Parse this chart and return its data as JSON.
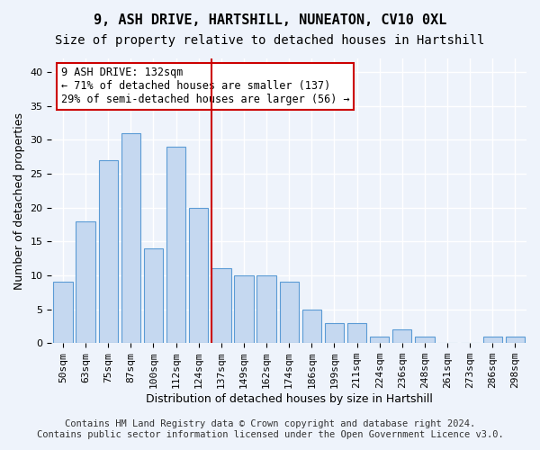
{
  "title1": "9, ASH DRIVE, HARTSHILL, NUNEATON, CV10 0XL",
  "title2": "Size of property relative to detached houses in Hartshill",
  "xlabel": "Distribution of detached houses by size in Hartshill",
  "ylabel": "Number of detached properties",
  "categories": [
    "50sqm",
    "63sqm",
    "75sqm",
    "87sqm",
    "100sqm",
    "112sqm",
    "124sqm",
    "137sqm",
    "149sqm",
    "162sqm",
    "174sqm",
    "186sqm",
    "199sqm",
    "211sqm",
    "224sqm",
    "236sqm",
    "248sqm",
    "261sqm",
    "273sqm",
    "286sqm",
    "298sqm"
  ],
  "values": [
    9,
    18,
    27,
    31,
    14,
    29,
    20,
    11,
    10,
    10,
    9,
    5,
    3,
    3,
    1,
    2,
    1,
    0,
    0,
    1,
    1
  ],
  "bar_color": "#c5d8f0",
  "bar_edge_color": "#5b9bd5",
  "annotation_line1": "9 ASH DRIVE: 132sqm",
  "annotation_line2": "← 71% of detached houses are smaller (137)",
  "annotation_line3": "29% of semi-detached houses are larger (56) →",
  "annotation_box_color": "#ffffff",
  "annotation_box_edge": "#cc0000",
  "vline_color": "#cc0000",
  "vline_x": 6.575,
  "ylim": [
    0,
    42
  ],
  "yticks": [
    0,
    5,
    10,
    15,
    20,
    25,
    30,
    35,
    40
  ],
  "footer1": "Contains HM Land Registry data © Crown copyright and database right 2024.",
  "footer2": "Contains public sector information licensed under the Open Government Licence v3.0.",
  "background_color": "#eef3fb",
  "plot_bg_color": "#eef3fb",
  "grid_color": "#ffffff",
  "title1_fontsize": 11,
  "title2_fontsize": 10,
  "xlabel_fontsize": 9,
  "ylabel_fontsize": 9,
  "tick_fontsize": 8,
  "annotation_fontsize": 8.5,
  "footer_fontsize": 7.5
}
